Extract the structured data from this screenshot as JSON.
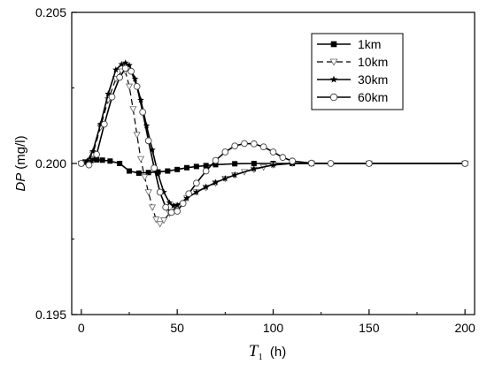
{
  "chart_data": {
    "type": "line",
    "title": "",
    "xlabel": {
      "symbol": "T",
      "subscript": "1",
      "unit": "(h)"
    },
    "ylabel": {
      "symbol": "DP",
      "unit": "(mg/l)"
    },
    "xlim": [
      -5,
      205
    ],
    "ylim": [
      0.195,
      0.205
    ],
    "x_ticks": [
      "0",
      "50",
      "100",
      "150",
      "200"
    ],
    "y_ticks": [
      "0.195",
      "0.200",
      "0.205"
    ],
    "grid": false,
    "legend_position": "top-right",
    "series": [
      {
        "name": "1km",
        "marker": "square-filled",
        "line_style": "solid",
        "x": [
          0,
          2,
          5,
          8,
          11,
          15,
          20,
          25,
          30,
          35,
          40,
          45,
          50,
          55,
          60,
          65,
          70,
          80,
          90,
          100,
          110,
          120,
          150,
          200
        ],
        "y": [
          0.2,
          0.20005,
          0.2001,
          0.20012,
          0.20011,
          0.20008,
          0.2,
          0.19975,
          0.19968,
          0.1997,
          0.19972,
          0.19975,
          0.1998,
          0.19986,
          0.1999,
          0.19993,
          0.19996,
          0.19999,
          0.2,
          0.2,
          0.2,
          0.2,
          0.2,
          0.2
        ]
      },
      {
        "name": "10km",
        "marker": "triangle-open",
        "line_style": "dashed",
        "x": [
          0,
          3,
          6,
          10,
          14,
          18,
          21,
          23,
          25,
          27,
          29,
          31,
          33,
          35,
          37,
          39,
          41,
          43,
          46,
          50,
          55,
          60,
          65,
          70,
          75,
          80,
          85,
          90,
          95,
          100,
          110,
          120,
          150,
          200
        ],
        "y": [
          0.2,
          0.20005,
          0.2003,
          0.2012,
          0.2021,
          0.2028,
          0.20305,
          0.20305,
          0.20255,
          0.2018,
          0.20095,
          0.20015,
          0.19955,
          0.19905,
          0.19855,
          0.19815,
          0.198,
          0.19812,
          0.19835,
          0.1986,
          0.19885,
          0.19905,
          0.1992,
          0.19935,
          0.1995,
          0.19962,
          0.19972,
          0.1998,
          0.19988,
          0.19995,
          0.2,
          0.2,
          0.2,
          0.2
        ]
      },
      {
        "name": "30km",
        "marker": "star-filled",
        "line_style": "solid",
        "x": [
          0,
          3,
          6,
          10,
          14,
          18,
          21,
          23,
          25,
          28,
          31,
          34,
          37,
          40,
          43,
          46,
          48,
          50,
          55,
          60,
          65,
          70,
          75,
          80,
          90,
          100,
          110,
          120,
          150,
          200
        ],
        "y": [
          0.2,
          0.20008,
          0.2004,
          0.2013,
          0.2023,
          0.2031,
          0.20328,
          0.20333,
          0.20325,
          0.2028,
          0.2021,
          0.20125,
          0.20045,
          0.19965,
          0.19905,
          0.1987,
          0.1986,
          0.19862,
          0.19885,
          0.19905,
          0.19922,
          0.19937,
          0.1995,
          0.19962,
          0.19982,
          0.19995,
          0.2,
          0.2,
          0.2,
          0.2
        ]
      },
      {
        "name": "60km",
        "marker": "circle-open",
        "line_style": "solid",
        "x": [
          0,
          4,
          8,
          12,
          16,
          20,
          23,
          26,
          29,
          32,
          35,
          38,
          41,
          44,
          47,
          50,
          53,
          56,
          60,
          65,
          70,
          75,
          80,
          85,
          90,
          95,
          100,
          105,
          110,
          120,
          130,
          150,
          200
        ],
        "y": [
          0.2,
          0.19995,
          0.2003,
          0.2013,
          0.2022,
          0.20285,
          0.20315,
          0.20305,
          0.20255,
          0.2017,
          0.20075,
          0.19985,
          0.19905,
          0.19855,
          0.19838,
          0.19842,
          0.19868,
          0.199,
          0.19935,
          0.19975,
          0.2001,
          0.20038,
          0.20058,
          0.20066,
          0.20065,
          0.20055,
          0.20038,
          0.2002,
          0.20008,
          0.20001,
          0.2,
          0.2,
          0.2
        ]
      }
    ]
  }
}
